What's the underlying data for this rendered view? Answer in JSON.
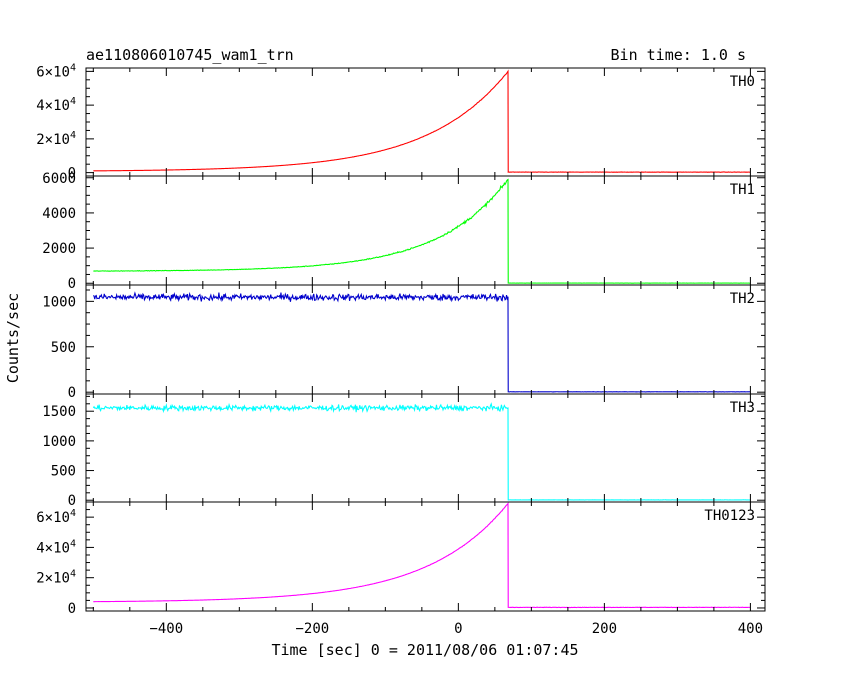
{
  "chart_data": {
    "type": "line",
    "title": "ae110806010745_wam1_trn",
    "bin_time_label": "Bin time: 1.0 s",
    "xlabel": "Time [sec] 0 = 2011/08/06 01:07:45",
    "ylabel": "Counts/sec",
    "xlim": [
      -510,
      420
    ],
    "x_ticks": [
      -400,
      -200,
      0,
      200,
      400
    ],
    "x_tick_labels": [
      "−400",
      "−200",
      "0",
      "200",
      "400"
    ],
    "grid": false,
    "panels": [
      {
        "name": "TH0",
        "color": "#ff0000",
        "ylim": [
          -2000,
          62000
        ],
        "y_ticks": [
          0,
          20000,
          40000,
          60000
        ],
        "y_tick_labels": [
          {
            "main": "0"
          },
          {
            "main": "2×10",
            "exp": "4"
          },
          {
            "main": "4×10",
            "exp": "4"
          },
          {
            "main": "6×10",
            "exp": "4"
          }
        ],
        "signal": {
          "type": "exp",
          "base": 700,
          "peak": 60000,
          "tau": 110,
          "noise": 0.004,
          "after": 300
        }
      },
      {
        "name": "TH1",
        "color": "#00ff00",
        "ylim": [
          -100,
          6100
        ],
        "y_ticks": [
          0,
          2000,
          4000,
          6000
        ],
        "y_tick_labels": [
          {
            "main": "0"
          },
          {
            "main": "2000"
          },
          {
            "main": "4000"
          },
          {
            "main": "6000"
          }
        ],
        "signal": {
          "type": "exp",
          "base": 680,
          "peak": 5900,
          "tau": 95,
          "noise": 0.018,
          "after": 8
        }
      },
      {
        "name": "TH2",
        "color": "#0000cc",
        "ylim": [
          -20,
          1180
        ],
        "y_ticks": [
          0,
          500,
          1000
        ],
        "y_tick_labels": [
          {
            "main": "0"
          },
          {
            "main": "500"
          },
          {
            "main": "1000"
          }
        ],
        "signal": {
          "type": "flat",
          "base": 1045,
          "peak": 1045,
          "noise": 0.035,
          "after": 4
        }
      },
      {
        "name": "TH3",
        "color": "#00ffff",
        "ylim": [
          -30,
          1790
        ],
        "y_ticks": [
          0,
          500,
          1000,
          1500
        ],
        "y_tick_labels": [
          {
            "main": "0"
          },
          {
            "main": "500"
          },
          {
            "main": "1000"
          },
          {
            "main": "1500"
          }
        ],
        "signal": {
          "type": "flat",
          "base": 1555,
          "peak": 1555,
          "noise": 0.03,
          "after": 5
        }
      },
      {
        "name": "TH0123",
        "color": "#ff00ff",
        "ylim": [
          -2000,
          70000
        ],
        "y_ticks": [
          0,
          20000,
          40000,
          60000
        ],
        "y_tick_labels": [
          {
            "main": "0"
          },
          {
            "main": "2×10",
            "exp": "4"
          },
          {
            "main": "4×10",
            "exp": "4"
          },
          {
            "main": "6×10",
            "exp": "4"
          }
        ],
        "signal": {
          "type": "exp",
          "base": 3800,
          "peak": 69000,
          "tau": 110,
          "noise": 0.004,
          "after": 400
        }
      }
    ],
    "cutoff_time": 68,
    "x_start": -500,
    "x_end": 400
  }
}
